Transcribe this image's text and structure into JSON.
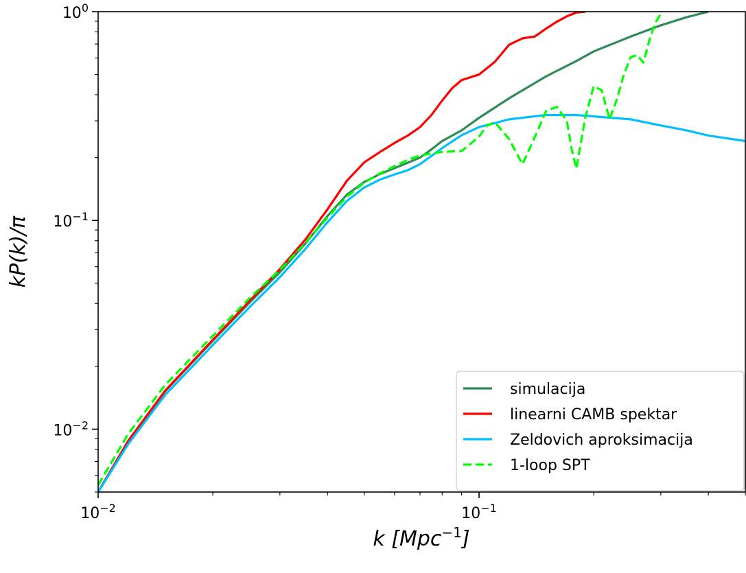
{
  "chart_data": {
    "type": "line",
    "xscale": "log",
    "yscale": "log",
    "xlim": [
      0.01,
      0.5
    ],
    "ylim": [
      0.005,
      1.0
    ],
    "xlabel": "k [Mpc^-1]",
    "ylabel": "kP(k)/π",
    "xticks": [
      {
        "value": 0.01,
        "base": "10",
        "exp": "−2"
      },
      {
        "value": 0.1,
        "base": "10",
        "exp": "−1"
      }
    ],
    "yticks": [
      {
        "value": 0.01,
        "base": "10",
        "exp": "−2"
      },
      {
        "value": 0.1,
        "base": "10",
        "exp": "−1"
      },
      {
        "value": 1.0,
        "base": "10",
        "exp": "0"
      }
    ],
    "legend_position": "lower-right",
    "grid": false,
    "series": [
      {
        "name": "simulacija",
        "color": "#2e8b57",
        "dash": "solid",
        "x": [
          0.01,
          0.012,
          0.015,
          0.02,
          0.025,
          0.03,
          0.035,
          0.04,
          0.045,
          0.05,
          0.055,
          0.06,
          0.065,
          0.07,
          0.075,
          0.08,
          0.09,
          0.1,
          0.12,
          0.15,
          0.18,
          0.2,
          0.25,
          0.3,
          0.35,
          0.4
        ],
        "y": [
          0.005,
          0.0088,
          0.0152,
          0.0265,
          0.0405,
          0.0565,
          0.0775,
          0.105,
          0.133,
          0.153,
          0.167,
          0.178,
          0.189,
          0.2,
          0.219,
          0.24,
          0.27,
          0.31,
          0.385,
          0.49,
          0.58,
          0.645,
          0.76,
          0.86,
          0.94,
          1.0
        ]
      },
      {
        "name": "linearni CAMB spektar",
        "color": "#ff0000",
        "dash": "solid",
        "x": [
          0.01,
          0.012,
          0.015,
          0.02,
          0.025,
          0.03,
          0.035,
          0.04,
          0.045,
          0.05,
          0.055,
          0.06,
          0.065,
          0.07,
          0.075,
          0.08,
          0.085,
          0.09,
          0.1,
          0.11,
          0.12,
          0.13,
          0.14,
          0.15,
          0.16,
          0.17,
          0.18,
          0.19
        ],
        "y": [
          0.005,
          0.0088,
          0.0153,
          0.0268,
          0.0412,
          0.0585,
          0.081,
          0.113,
          0.155,
          0.19,
          0.213,
          0.235,
          0.255,
          0.28,
          0.32,
          0.375,
          0.43,
          0.47,
          0.5,
          0.575,
          0.695,
          0.745,
          0.76,
          0.83,
          0.895,
          0.95,
          0.99,
          1.0
        ]
      },
      {
        "name": "Zeldovich aproksimacija",
        "color": "#00bfff",
        "dash": "solid",
        "x": [
          0.01,
          0.012,
          0.015,
          0.02,
          0.025,
          0.03,
          0.035,
          0.04,
          0.045,
          0.05,
          0.055,
          0.06,
          0.065,
          0.07,
          0.08,
          0.09,
          0.1,
          0.12,
          0.15,
          0.18,
          0.2,
          0.25,
          0.3,
          0.35,
          0.4,
          0.5
        ],
        "y": [
          0.005,
          0.0085,
          0.0146,
          0.0253,
          0.0385,
          0.0535,
          0.073,
          0.098,
          0.124,
          0.144,
          0.157,
          0.166,
          0.174,
          0.186,
          0.222,
          0.256,
          0.28,
          0.305,
          0.32,
          0.32,
          0.315,
          0.305,
          0.285,
          0.27,
          0.255,
          0.24
        ]
      },
      {
        "name": "1-loop SPT",
        "color": "#00ff00",
        "dash": "dashed",
        "x": [
          0.01,
          0.012,
          0.015,
          0.02,
          0.025,
          0.03,
          0.035,
          0.04,
          0.045,
          0.05,
          0.055,
          0.06,
          0.065,
          0.07,
          0.08,
          0.09,
          0.1,
          0.105,
          0.11,
          0.12,
          0.13,
          0.14,
          0.15,
          0.16,
          0.17,
          0.175,
          0.18,
          0.19,
          0.2,
          0.21,
          0.22,
          0.23,
          0.24,
          0.25,
          0.26,
          0.27,
          0.28,
          0.29,
          0.3
        ],
        "y": [
          0.0054,
          0.0095,
          0.0163,
          0.028,
          0.0425,
          0.058,
          0.078,
          0.1035,
          0.13,
          0.152,
          0.168,
          0.182,
          0.195,
          0.205,
          0.213,
          0.215,
          0.252,
          0.285,
          0.295,
          0.245,
          0.186,
          0.25,
          0.335,
          0.35,
          0.3,
          0.22,
          0.177,
          0.31,
          0.44,
          0.42,
          0.305,
          0.38,
          0.5,
          0.605,
          0.62,
          0.57,
          0.73,
          0.88,
          0.98
        ]
      }
    ]
  }
}
